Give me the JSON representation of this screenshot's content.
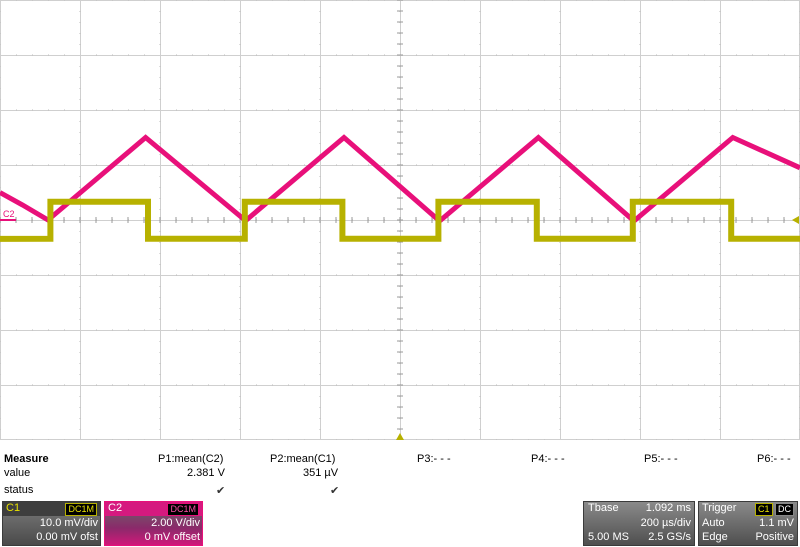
{
  "channels": {
    "c1": {
      "label": "C1",
      "coupling": "DC1M",
      "vdiv": "10.0 mV/div",
      "offset": "0.00 mV ofst",
      "color": "#b7b100"
    },
    "c2": {
      "label": "C2",
      "coupling": "DC1M",
      "vdiv": "2.00 V/div",
      "offset": "0 mV offset",
      "color": "#e8107a"
    }
  },
  "measure": {
    "title": "Measure",
    "row_labels": {
      "value": "value",
      "status": "status"
    },
    "params": [
      {
        "name": "P1:mean(C2)",
        "value": "2.381 V",
        "status": "✔"
      },
      {
        "name": "P2:mean(C1)",
        "value": "351 µV",
        "status": "✔"
      },
      {
        "name": "P3:- - -",
        "value": "",
        "status": ""
      },
      {
        "name": "P4:- - -",
        "value": "",
        "status": ""
      },
      {
        "name": "P5:- - -",
        "value": "",
        "status": ""
      },
      {
        "name": "P6:- - -",
        "value": "",
        "status": ""
      }
    ]
  },
  "timebase": {
    "label": "Tbase",
    "delay": "1.092 ms",
    "div": "200 µs/div",
    "samples": "5.00 MS",
    "rate": "2.5 GS/s"
  },
  "trigger": {
    "label": "Trigger",
    "source": "C1",
    "coupling": "DC",
    "mode": "Auto",
    "level": "1.1 mV",
    "type": "Edge",
    "slope": "Positive"
  },
  "screen_markers": {
    "c2_level": "C2"
  },
  "chart_data": {
    "type": "line",
    "x": [
      0.0,
      0.028,
      0.06,
      0.182,
      0.306,
      0.308,
      0.43,
      0.548,
      0.551,
      0.673,
      0.791,
      0.794,
      0.916,
      1.0
    ],
    "series": [
      {
        "name": "C2",
        "color": "#e8107a",
        "values": [
          1.0,
          0.55,
          0.0,
          3.0,
          0.0,
          0.0,
          3.0,
          0.0,
          0.0,
          3.0,
          0.0,
          0.0,
          3.0,
          1.9
        ]
      }
    ],
    "square_wave": {
      "name": "C1",
      "color": "#b7b100",
      "high_mv": 0.6,
      "low_mv": -0.7,
      "rising_fraction": [
        0.063,
        0.306,
        0.548,
        0.791
      ],
      "falling_fraction": [
        0.185,
        0.428,
        0.671,
        0.914
      ]
    },
    "grid": {
      "x_divisions": 10,
      "y_divisions": 8
    },
    "xlabel": "",
    "ylabel": ""
  }
}
